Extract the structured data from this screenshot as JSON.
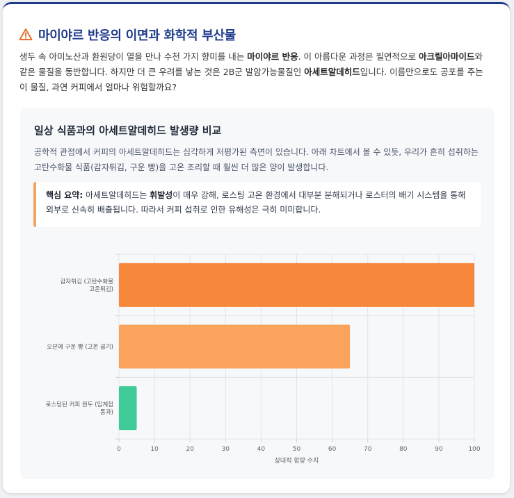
{
  "header": {
    "icon": "warning-triangle-icon",
    "title": "마이야르 반응의 이면과 화학적 부산물"
  },
  "intro": {
    "p1": "생두 속 아미노산과 환원당이 열을 만나 수천 가지 향미를 내는 ",
    "b1": "마이야르 반응",
    "p2": ". 이 아름다운 과정은 필연적으로 ",
    "b2": "아크릴아마이드",
    "p3": "와 같은 물질을 동반합니다. 하지만 더 큰 우려를 낳는 것은 2B군 발암가능물질인 ",
    "b3": "아세트알데히드",
    "p4": "입니다. 이름만으로도 공포를 주는 이 물질, 과연 커피에서 얼마나 위험할까요?"
  },
  "panel": {
    "title": "일상 식품과의 아세트알데히드 발생량 비교",
    "description": "공학적 관점에서 커피의 아세트알데히드는 심각하게 저평가된 측면이 있습니다. 아래 차트에서 볼 수 있듯, 우리가 흔히 섭취하는 고탄수화물 식품(감자튀김, 구운 빵)을 고온 조리할 때 훨씬 더 많은 양이 발생합니다.",
    "callout": {
      "label": "핵심 요약:",
      "t1": " 아세트알데히드는 ",
      "b1": "휘발성",
      "t2": "이 매우 강해, 로스팅 고온 환경에서 대부분 분해되거나 로스터의 배기 시스템을 통해 외부로 신속히 배출됩니다. 따라서 커피 섭취로 인한 유해성은 극히 미미합니다."
    }
  },
  "chart_data": {
    "type": "bar",
    "orientation": "horizontal",
    "categories": [
      [
        "감자튀김 (고탄수화물",
        "고온튀김)"
      ],
      [
        "오븐에 구운 빵 (고온 굽기)"
      ],
      [
        "로스팅된 커피 원두 (임계점",
        "통과)"
      ]
    ],
    "values": [
      100,
      65,
      5
    ],
    "colors": [
      "#f7873b",
      "#f9a35c",
      "#3ecb98"
    ],
    "xlabel": "상대적 함량 수치",
    "xlim": [
      0,
      100
    ],
    "xticks": [
      0,
      10,
      20,
      30,
      40,
      50,
      60,
      70,
      80,
      90,
      100
    ],
    "grid": true
  }
}
